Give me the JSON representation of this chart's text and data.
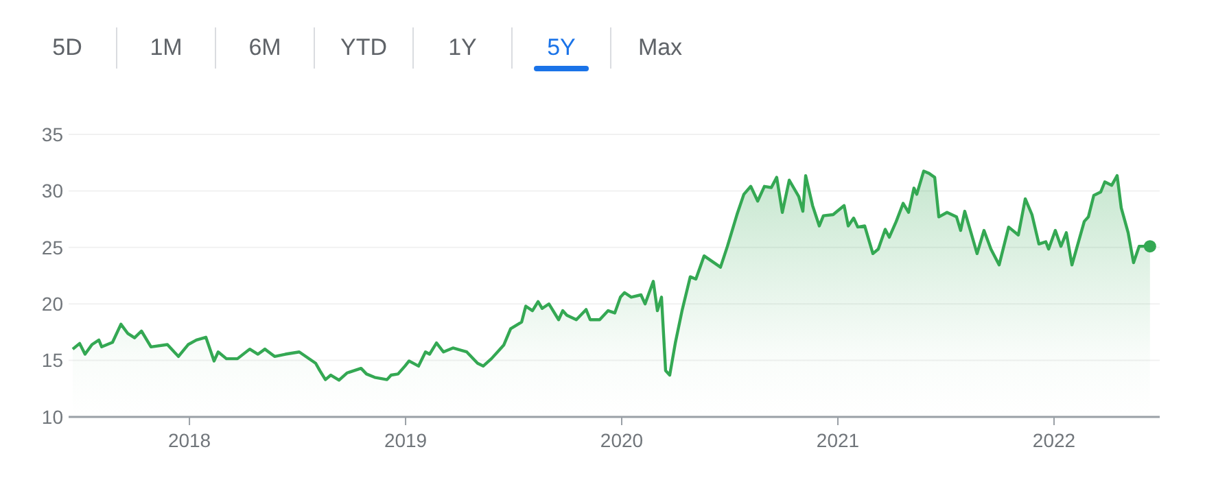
{
  "chart_data": {
    "type": "area",
    "annotations": [
      "5D",
      "1M",
      "6M",
      "YTD",
      "1Y",
      "5Y",
      "Max"
    ],
    "xlim": [
      2017.441,
      2022.489
    ],
    "xticks": [
      2018,
      2019,
      2020,
      2021,
      2022
    ],
    "ylim": [
      10,
      35
    ],
    "yticks": [
      10,
      15,
      20,
      25,
      30,
      35
    ],
    "grid": "y",
    "series": [
      {
        "color": "#34a853",
        "x": [
          2017.46,
          2017.492,
          2017.517,
          2017.549,
          2017.581,
          2017.594,
          2017.644,
          2017.683,
          2017.714,
          2017.746,
          2017.778,
          2017.822,
          2017.898,
          2017.949,
          2017.994,
          2018.032,
          2018.076,
          2018.114,
          2018.133,
          2018.171,
          2018.222,
          2018.279,
          2018.317,
          2018.349,
          2018.394,
          2018.444,
          2018.508,
          2018.584,
          2018.603,
          2018.629,
          2018.654,
          2018.692,
          2018.73,
          2018.794,
          2018.819,
          2018.857,
          2018.914,
          2018.933,
          2018.965,
          2018.997,
          2019.016,
          2019.06,
          2019.092,
          2019.111,
          2019.143,
          2019.175,
          2019.219,
          2019.283,
          2019.333,
          2019.359,
          2019.397,
          2019.454,
          2019.486,
          2019.537,
          2019.556,
          2019.587,
          2019.613,
          2019.632,
          2019.663,
          2019.708,
          2019.727,
          2019.746,
          2019.79,
          2019.835,
          2019.854,
          2019.898,
          2019.937,
          2019.968,
          2019.994,
          2020.013,
          2020.044,
          2020.089,
          2020.108,
          2020.146,
          2020.165,
          2020.184,
          2020.203,
          2020.222,
          2020.248,
          2020.279,
          2020.317,
          2020.343,
          2020.381,
          2020.457,
          2020.489,
          2020.533,
          2020.565,
          2020.597,
          2020.629,
          2020.66,
          2020.692,
          2020.717,
          2020.743,
          2020.775,
          2020.819,
          2020.838,
          2020.851,
          2020.883,
          2020.914,
          2020.933,
          2020.978,
          2020.997,
          2021.029,
          2021.048,
          2021.073,
          2021.092,
          2021.124,
          2021.162,
          2021.187,
          2021.219,
          2021.238,
          2021.27,
          2021.302,
          2021.327,
          2021.352,
          2021.365,
          2021.397,
          2021.422,
          2021.448,
          2021.467,
          2021.505,
          2021.549,
          2021.568,
          2021.587,
          2021.613,
          2021.644,
          2021.676,
          2021.708,
          2021.746,
          2021.79,
          2021.835,
          2021.867,
          2021.898,
          2021.93,
          2021.962,
          2021.975,
          2022.006,
          2022.032,
          2022.057,
          2022.083,
          2022.14,
          2022.159,
          2022.184,
          2022.216,
          2022.235,
          2022.267,
          2022.292,
          2022.311,
          2022.343,
          2022.368,
          2022.394,
          2022.444
        ],
        "values": [
          16.0,
          16.5,
          15.55,
          16.4,
          16.8,
          16.2,
          16.6,
          18.2,
          17.4,
          17.0,
          17.6,
          16.2,
          16.4,
          15.35,
          16.4,
          16.8,
          17.05,
          14.95,
          15.75,
          15.15,
          15.15,
          16.0,
          15.55,
          16.0,
          15.35,
          15.55,
          15.75,
          14.75,
          14.1,
          13.3,
          13.7,
          13.25,
          13.9,
          14.3,
          13.8,
          13.5,
          13.3,
          13.7,
          13.8,
          14.5,
          14.95,
          14.5,
          15.75,
          15.55,
          16.55,
          15.75,
          16.1,
          15.75,
          14.75,
          14.5,
          15.15,
          16.35,
          17.8,
          18.4,
          19.8,
          19.4,
          20.2,
          19.6,
          20.0,
          18.6,
          19.4,
          19.0,
          18.6,
          19.5,
          18.6,
          18.6,
          19.4,
          19.2,
          20.6,
          21.0,
          20.6,
          20.8,
          20.0,
          22.0,
          19.4,
          20.6,
          14.1,
          13.7,
          16.55,
          19.4,
          22.4,
          22.2,
          24.25,
          23.25,
          25.1,
          27.9,
          29.7,
          30.4,
          29.1,
          30.4,
          30.3,
          31.2,
          28.1,
          30.95,
          29.5,
          28.2,
          31.35,
          28.7,
          26.9,
          27.8,
          27.9,
          28.2,
          28.7,
          26.9,
          27.6,
          26.8,
          26.9,
          24.45,
          24.85,
          26.6,
          25.9,
          27.3,
          28.9,
          28.1,
          30.25,
          29.7,
          31.75,
          31.55,
          31.2,
          27.7,
          28.1,
          27.7,
          26.5,
          28.2,
          26.5,
          24.45,
          26.5,
          24.85,
          23.45,
          26.8,
          26.1,
          29.3,
          27.9,
          25.3,
          25.5,
          24.85,
          26.5,
          25.1,
          26.3,
          23.45,
          27.3,
          27.7,
          29.6,
          29.9,
          30.8,
          30.5,
          31.35,
          28.5,
          26.3,
          23.65,
          25.1,
          25.1
        ]
      }
    ]
  }
}
